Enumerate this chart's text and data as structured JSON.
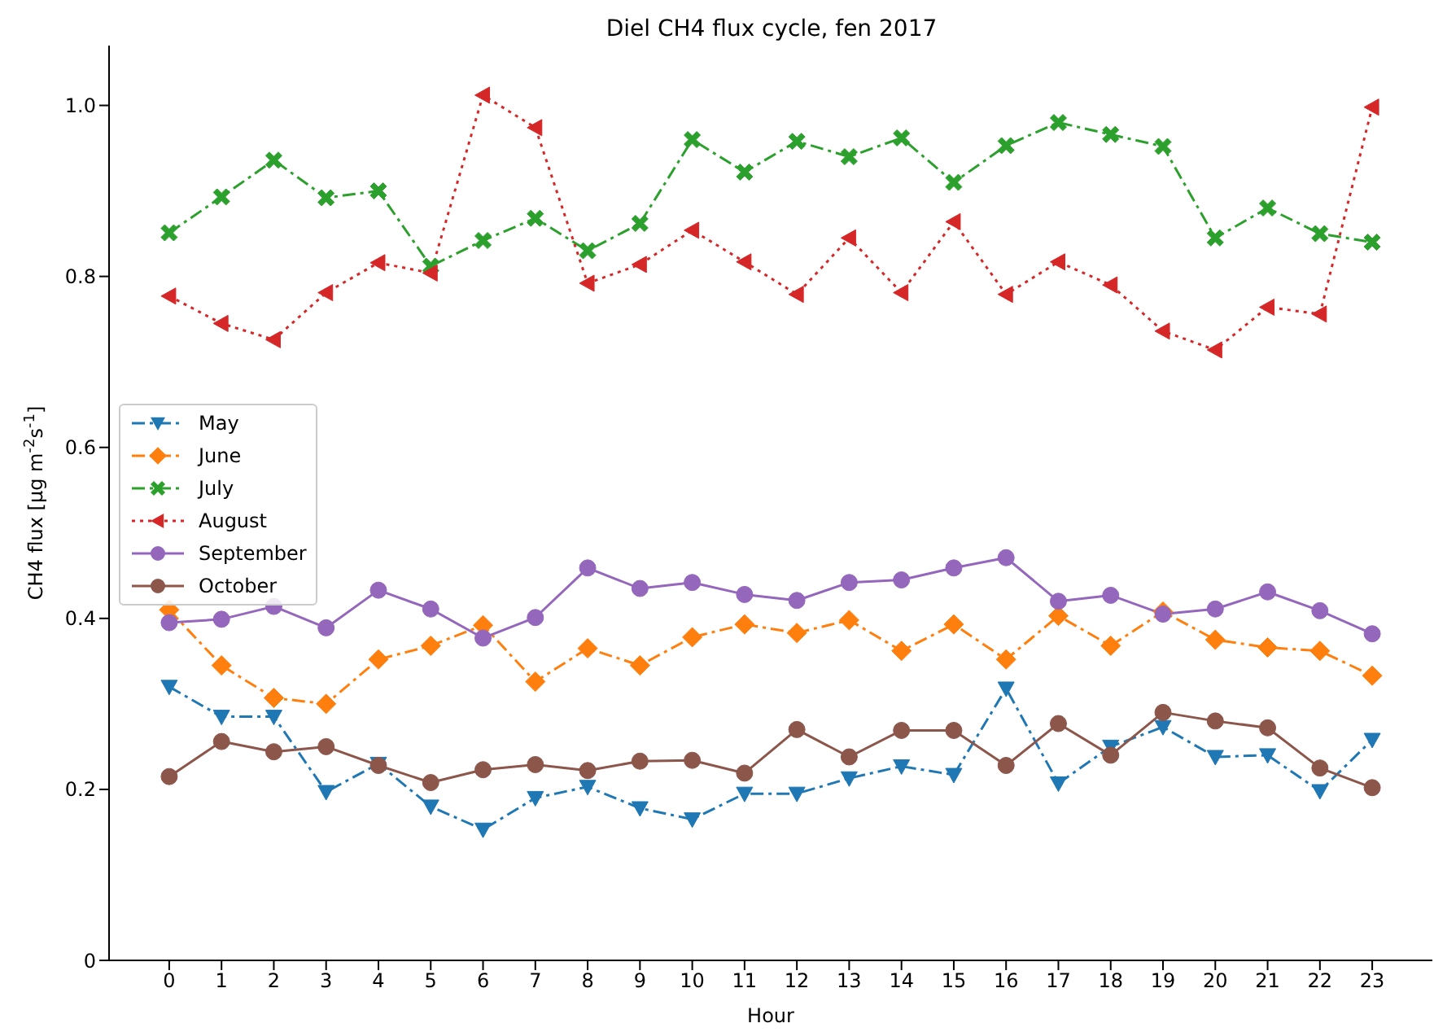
{
  "chart_data": {
    "type": "line",
    "title": "Diel CH4 flux cycle, fen 2017",
    "xlabel": "Hour",
    "ylabel": "CH4 flux [μg m$^{-2}$s$^{-1}$]",
    "x": [
      0,
      1,
      2,
      3,
      4,
      5,
      6,
      7,
      8,
      9,
      10,
      11,
      12,
      13,
      14,
      15,
      16,
      17,
      18,
      19,
      20,
      21,
      22,
      23
    ],
    "xlim": [
      -1.15,
      24.15
    ],
    "xticks": [
      0,
      1,
      2,
      3,
      4,
      5,
      6,
      7,
      8,
      9,
      10,
      11,
      12,
      13,
      14,
      15,
      16,
      17,
      18,
      19,
      20,
      21,
      22,
      23
    ],
    "ylim": [
      0,
      1.07
    ],
    "yticks": [
      0,
      {
        "value": 0.2,
        "label": "0.2"
      },
      {
        "value": 0.4,
        "label": "0.4"
      },
      {
        "value": 0.6,
        "label": "0.6"
      },
      {
        "value": 0.8,
        "label": "0.8"
      },
      {
        "value": 1,
        "label": "1.0"
      }
    ],
    "legend": "left",
    "series": [
      {
        "name": "May",
        "color": "#1f77b4",
        "marker": "triangle-down",
        "line_style": "dashdot",
        "values": [
          0.32,
          0.285,
          0.285,
          0.197,
          0.23,
          0.18,
          0.153,
          0.19,
          0.203,
          0.178,
          0.165,
          0.195,
          0.195,
          0.213,
          0.227,
          0.217,
          0.318,
          0.207,
          0.25,
          0.273,
          0.238,
          0.24,
          0.198,
          0.258
        ]
      },
      {
        "name": "June",
        "color": "#ff7f0e",
        "marker": "diamond",
        "line_style": "dashdot",
        "values": [
          0.41,
          0.345,
          0.307,
          0.3,
          0.352,
          0.368,
          0.392,
          0.326,
          0.365,
          0.345,
          0.378,
          0.393,
          0.383,
          0.398,
          0.362,
          0.393,
          0.352,
          0.403,
          0.368,
          0.408,
          0.375,
          0.366,
          0.362,
          0.333
        ]
      },
      {
        "name": "July",
        "color": "#2ca02c",
        "marker": "cross",
        "line_style": "dashdot",
        "values": [
          0.851,
          0.893,
          0.936,
          0.892,
          0.9,
          0.812,
          0.842,
          0.868,
          0.83,
          0.862,
          0.96,
          0.922,
          0.958,
          0.94,
          0.962,
          0.91,
          0.953,
          0.98,
          0.966,
          0.952,
          0.845,
          0.88,
          0.85,
          0.84
        ]
      },
      {
        "name": "August",
        "color": "#d62728",
        "marker": "triangle-left",
        "line_style": "dotted",
        "values": [
          0.777,
          0.745,
          0.726,
          0.781,
          0.816,
          0.804,
          1.012,
          0.974,
          0.792,
          0.814,
          0.854,
          0.817,
          0.779,
          0.845,
          0.781,
          0.864,
          0.779,
          0.817,
          0.79,
          0.736,
          0.714,
          0.764,
          0.756,
          0.998
        ]
      },
      {
        "name": "September",
        "color": "#9467bd",
        "marker": "circle",
        "line_style": "solid",
        "values": [
          0.395,
          0.399,
          0.414,
          0.389,
          0.433,
          0.411,
          0.377,
          0.401,
          0.459,
          0.435,
          0.442,
          0.428,
          0.421,
          0.442,
          0.445,
          0.459,
          0.471,
          0.42,
          0.427,
          0.405,
          0.411,
          0.431,
          0.409,
          0.382
        ]
      },
      {
        "name": "October",
        "color": "#8c564b",
        "marker": "circle",
        "line_style": "solid",
        "values": [
          0.215,
          0.256,
          0.244,
          0.25,
          0.228,
          0.208,
          0.223,
          0.229,
          0.222,
          0.233,
          0.234,
          0.219,
          0.27,
          0.238,
          0.269,
          0.269,
          0.228,
          0.277,
          0.24,
          0.29,
          0.28,
          0.272,
          0.225,
          0.202
        ]
      }
    ]
  }
}
